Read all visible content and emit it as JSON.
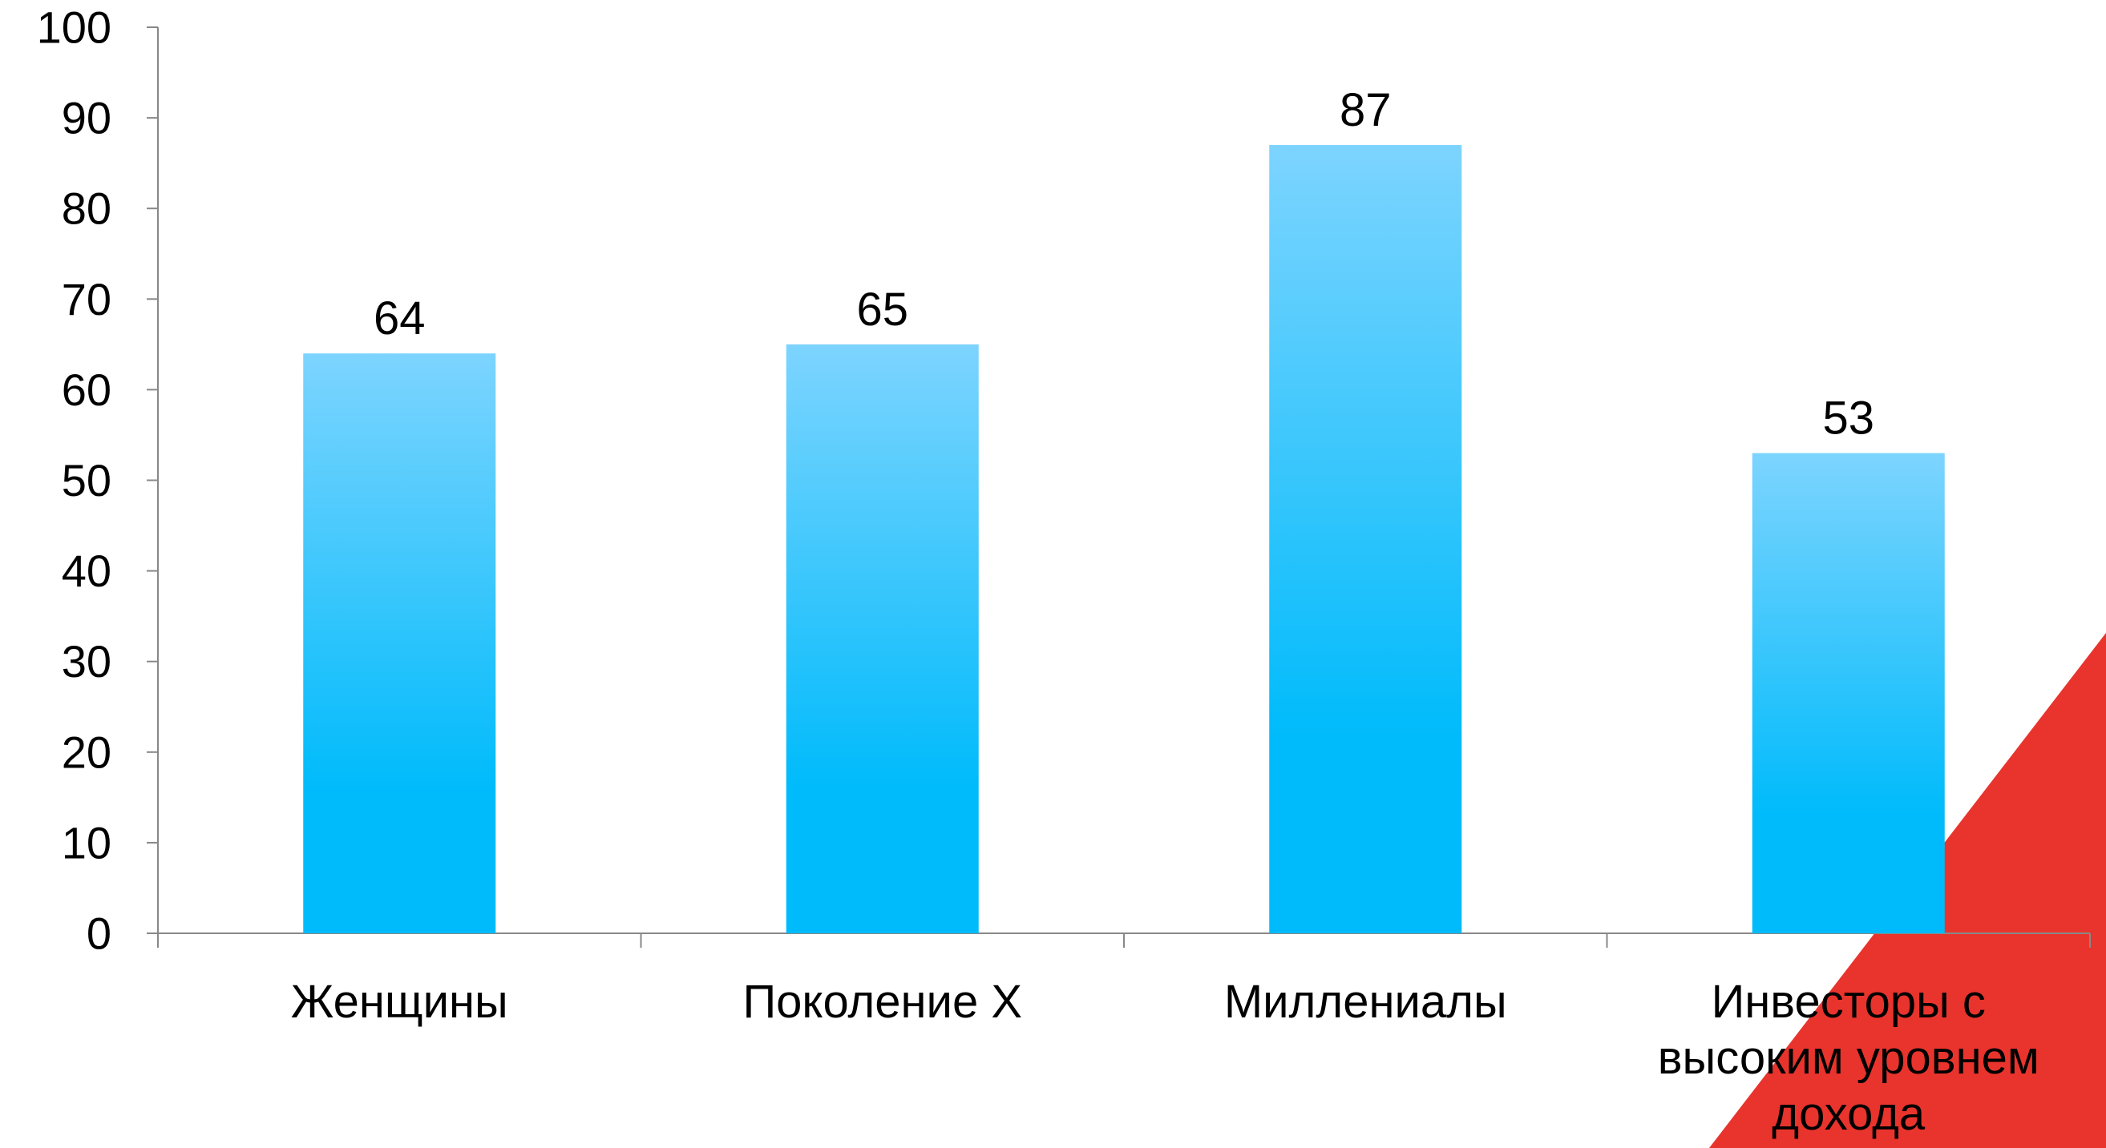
{
  "chart_data": {
    "type": "bar",
    "categories": [
      [
        "Женщины"
      ],
      [
        "Поколение X"
      ],
      [
        "Миллениалы"
      ],
      [
        "Инвесторы с",
        "высоким уровнем",
        "дохода"
      ]
    ],
    "values": [
      64,
      65,
      87,
      53
    ],
    "value_labels": [
      "64",
      "65",
      "87",
      "53"
    ],
    "ylim": [
      0,
      100
    ],
    "yticks": [
      0,
      10,
      20,
      30,
      40,
      50,
      60,
      70,
      80,
      90,
      100
    ],
    "ytick_labels": [
      "0",
      "10",
      "20",
      "30",
      "40",
      "50",
      "60",
      "70",
      "80",
      "90",
      "100"
    ],
    "grid": false,
    "legend": "none",
    "colors": {
      "bar_top": "#7dd4fe",
      "bar_bottom": "#00bbfb",
      "axis": "#888888",
      "accent_triangle": "#e8342d"
    }
  }
}
